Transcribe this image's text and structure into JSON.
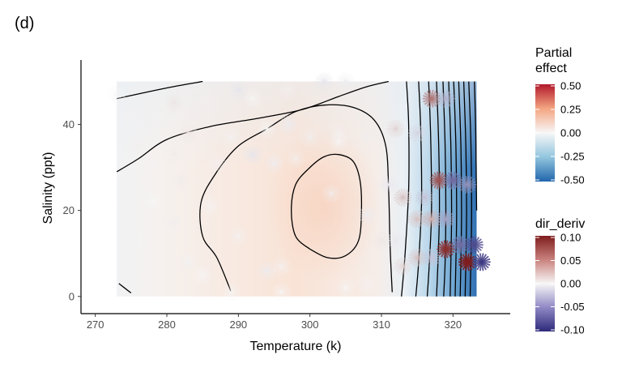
{
  "panel_label": "(d)",
  "chart_data": {
    "type": "heatmap",
    "xlabel": "Temperature (k)",
    "ylabel": "Salinity (ppt)",
    "xlim": [
      268,
      328
    ],
    "ylim": [
      -4,
      55
    ],
    "x_ticks": [
      270,
      280,
      290,
      300,
      310,
      320
    ],
    "y_ticks": [
      0,
      20,
      40
    ],
    "raster_extent": {
      "x": [
        273,
        323.3
      ],
      "y": [
        0,
        50
      ]
    },
    "grid": false,
    "legends": [
      {
        "title": "Partial\neffect",
        "labels": [
          "0.50",
          "0.25",
          "0.00",
          "-0.25",
          "-0.50"
        ],
        "values": [
          0.5,
          0.25,
          0,
          -0.25,
          -0.5
        ],
        "colors": {
          "high": "#b2182b",
          "mid": "#f7f7f7",
          "low": "#2166ac"
        }
      },
      {
        "title": "dir_deriv",
        "labels": [
          "0.10",
          "0.05",
          "0.00",
          "-0.05",
          "-0.10"
        ],
        "values": [
          0.1,
          0.05,
          0,
          -0.05,
          -0.1
        ],
        "colors": {
          "high": "#7f1d1d",
          "mid": "#f7f7f7",
          "low": "#2d2a7a"
        }
      }
    ],
    "contours": [
      {
        "level": 0.1,
        "points": [
          [
            300,
            11
          ],
          [
            298,
            14
          ],
          [
            297.4,
            20
          ],
          [
            298,
            26
          ],
          [
            300,
            30
          ],
          [
            302,
            32.5
          ],
          [
            304,
            33
          ],
          [
            306,
            31.5
          ],
          [
            307,
            27
          ],
          [
            307.2,
            20
          ],
          [
            306.8,
            13
          ],
          [
            305,
            9.5
          ],
          [
            302.5,
            9
          ],
          [
            300,
            11
          ]
        ]
      },
      {
        "level": 0.05,
        "points": [
          [
            289,
            1
          ],
          [
            287,
            9
          ],
          [
            285,
            14
          ],
          [
            284.8,
            22
          ],
          [
            287,
            29
          ],
          [
            290,
            35
          ],
          [
            294,
            39
          ],
          [
            298,
            43
          ],
          [
            302,
            44.5
          ],
          [
            306,
            44
          ],
          [
            309,
            41
          ],
          [
            310.6,
            35
          ],
          [
            311,
            25
          ],
          [
            311.2,
            12
          ],
          [
            311.5,
            1
          ]
        ]
      },
      {
        "level": 0.0,
        "points": [
          [
            273.3,
            3
          ],
          [
            275,
            0.8
          ]
        ]
      },
      {
        "level": 0.0,
        "points": [
          [
            273,
            29
          ],
          [
            276,
            32
          ],
          [
            280,
            36.5
          ],
          [
            286,
            39.5
          ],
          [
            293,
            41.5
          ],
          [
            299,
            43.5
          ],
          [
            304,
            46.5
          ],
          [
            308,
            48.8
          ],
          [
            311,
            50
          ]
        ]
      },
      {
        "level": 0.0,
        "points": [
          [
            273,
            46
          ],
          [
            280,
            48.5
          ],
          [
            285,
            50
          ]
        ]
      },
      {
        "level": -0.05,
        "points": [
          [
            313.5,
            50
          ],
          [
            313.8,
            40
          ],
          [
            313.8,
            25
          ],
          [
            313.3,
            10
          ],
          [
            312.8,
            0
          ]
        ]
      },
      {
        "level": -0.1,
        "points": [
          [
            315.2,
            50
          ],
          [
            315.5,
            38
          ],
          [
            315.6,
            22
          ],
          [
            315.2,
            8
          ],
          [
            314.8,
            0
          ]
        ]
      },
      {
        "level": -0.15,
        "points": [
          [
            316.6,
            50
          ],
          [
            316.9,
            36
          ],
          [
            317,
            20
          ],
          [
            316.7,
            8
          ],
          [
            316.4,
            0
          ]
        ]
      },
      {
        "level": -0.2,
        "points": [
          [
            317.7,
            50
          ],
          [
            318,
            35
          ],
          [
            318.1,
            20
          ],
          [
            317.9,
            8
          ],
          [
            317.7,
            0
          ]
        ]
      },
      {
        "level": -0.25,
        "points": [
          [
            318.6,
            50
          ],
          [
            318.9,
            35
          ],
          [
            319,
            20
          ],
          [
            318.9,
            8
          ],
          [
            318.7,
            0
          ]
        ]
      },
      {
        "level": -0.3,
        "points": [
          [
            319.4,
            50
          ],
          [
            319.7,
            35
          ],
          [
            319.8,
            20
          ],
          [
            319.7,
            8
          ],
          [
            319.6,
            0
          ]
        ]
      },
      {
        "level": -0.35,
        "points": [
          [
            320.1,
            50
          ],
          [
            320.4,
            35
          ],
          [
            320.5,
            20
          ],
          [
            320.4,
            8
          ],
          [
            320.3,
            0
          ]
        ]
      },
      {
        "level": -0.4,
        "points": [
          [
            320.8,
            50
          ],
          [
            321.1,
            35
          ],
          [
            321.2,
            20
          ],
          [
            321.1,
            8
          ],
          [
            321,
            0
          ]
        ]
      },
      {
        "level": -0.45,
        "points": [
          [
            321.5,
            50
          ],
          [
            321.8,
            35
          ],
          [
            321.9,
            20
          ],
          [
            321.8,
            8
          ],
          [
            321.7,
            0
          ]
        ]
      },
      {
        "level": -0.5,
        "points": [
          [
            322.2,
            50
          ],
          [
            322.5,
            36
          ],
          [
            322.6,
            20
          ],
          [
            322.5,
            8
          ],
          [
            322.4,
            0
          ]
        ]
      },
      {
        "level": -0.55,
        "points": [
          [
            323,
            50
          ],
          [
            323.2,
            36
          ],
          [
            323.3,
            20
          ]
        ]
      }
    ],
    "derivative_points": [
      {
        "x": 273,
        "y": 47,
        "d": 0.0
      },
      {
        "x": 275,
        "y": 42,
        "d": 0.003
      },
      {
        "x": 281,
        "y": 45,
        "d": 0.01
      },
      {
        "x": 284,
        "y": 43,
        "d": 0.006
      },
      {
        "x": 286,
        "y": 45,
        "d": 0.004
      },
      {
        "x": 290,
        "y": 48,
        "d": -0.01
      },
      {
        "x": 292,
        "y": 46,
        "d": 0.0
      },
      {
        "x": 297,
        "y": 48,
        "d": 0.004
      },
      {
        "x": 302,
        "y": 50,
        "d": -0.01
      },
      {
        "x": 305,
        "y": 50,
        "d": -0.005
      },
      {
        "x": 276,
        "y": 35,
        "d": 0.004
      },
      {
        "x": 283,
        "y": 38,
        "d": 0.008
      },
      {
        "x": 289,
        "y": 37,
        "d": 0.003
      },
      {
        "x": 294,
        "y": 39,
        "d": 0.0
      },
      {
        "x": 297,
        "y": 40,
        "d": -0.006
      },
      {
        "x": 300,
        "y": 37,
        "d": 0.005
      },
      {
        "x": 304,
        "y": 38,
        "d": 0.003
      },
      {
        "x": 292,
        "y": 33,
        "d": -0.01
      },
      {
        "x": 287,
        "y": 31,
        "d": 0.004
      },
      {
        "x": 281,
        "y": 33,
        "d": 0.006
      },
      {
        "x": 278,
        "y": 30,
        "d": 0.003
      },
      {
        "x": 295,
        "y": 31,
        "d": -0.004
      },
      {
        "x": 298,
        "y": 32,
        "d": 0.004
      },
      {
        "x": 304,
        "y": 36,
        "d": 0.0
      },
      {
        "x": 308,
        "y": 37,
        "d": 0.005
      },
      {
        "x": 312,
        "y": 39,
        "d": 0.02
      },
      {
        "x": 315,
        "y": 38,
        "d": -0.02
      },
      {
        "x": 317,
        "y": 46,
        "d": 0.07
      },
      {
        "x": 319,
        "y": 46,
        "d": -0.04
      },
      {
        "x": 278,
        "y": 22,
        "d": 0.0
      },
      {
        "x": 282,
        "y": 27,
        "d": 0.006
      },
      {
        "x": 286,
        "y": 21,
        "d": 0.003
      },
      {
        "x": 281,
        "y": 17,
        "d": 0.005
      },
      {
        "x": 290,
        "y": 14,
        "d": 0.003
      },
      {
        "x": 283,
        "y": 8,
        "d": -0.003
      },
      {
        "x": 285,
        "y": 5,
        "d": 0.0
      },
      {
        "x": 276,
        "y": 13,
        "d": 0.002
      },
      {
        "x": 303,
        "y": 24,
        "d": 0.006
      },
      {
        "x": 308,
        "y": 19,
        "d": -0.006
      },
      {
        "x": 311,
        "y": 26,
        "d": -0.008
      },
      {
        "x": 313,
        "y": 23,
        "d": 0.03
      },
      {
        "x": 316,
        "y": 23,
        "d": -0.03
      },
      {
        "x": 318,
        "y": 27,
        "d": 0.09
      },
      {
        "x": 320,
        "y": 27,
        "d": -0.08
      },
      {
        "x": 322,
        "y": 26,
        "d": -0.06
      },
      {
        "x": 315,
        "y": 18,
        "d": 0.03
      },
      {
        "x": 317,
        "y": 18,
        "d": 0.04
      },
      {
        "x": 319,
        "y": 18,
        "d": -0.05
      },
      {
        "x": 310,
        "y": 13,
        "d": 0.01
      },
      {
        "x": 312,
        "y": 13,
        "d": -0.008
      },
      {
        "x": 313,
        "y": 7,
        "d": 0.02
      },
      {
        "x": 315,
        "y": 9,
        "d": 0.03
      },
      {
        "x": 317,
        "y": 9,
        "d": -0.03
      },
      {
        "x": 319,
        "y": 11,
        "d": 0.11
      },
      {
        "x": 321,
        "y": 12,
        "d": -0.08
      },
      {
        "x": 323,
        "y": 12,
        "d": -0.1
      },
      {
        "x": 322,
        "y": 8,
        "d": 0.12
      },
      {
        "x": 324,
        "y": 8,
        "d": -0.11
      },
      {
        "x": 305,
        "y": 2,
        "d": 0.0
      },
      {
        "x": 308,
        "y": 3,
        "d": 0.003
      },
      {
        "x": 294,
        "y": 6,
        "d": -0.006
      },
      {
        "x": 289,
        "y": 1,
        "d": 0.0
      },
      {
        "x": 296,
        "y": 1,
        "d": 0.0
      },
      {
        "x": 296,
        "y": 7,
        "d": 0.003
      }
    ]
  }
}
